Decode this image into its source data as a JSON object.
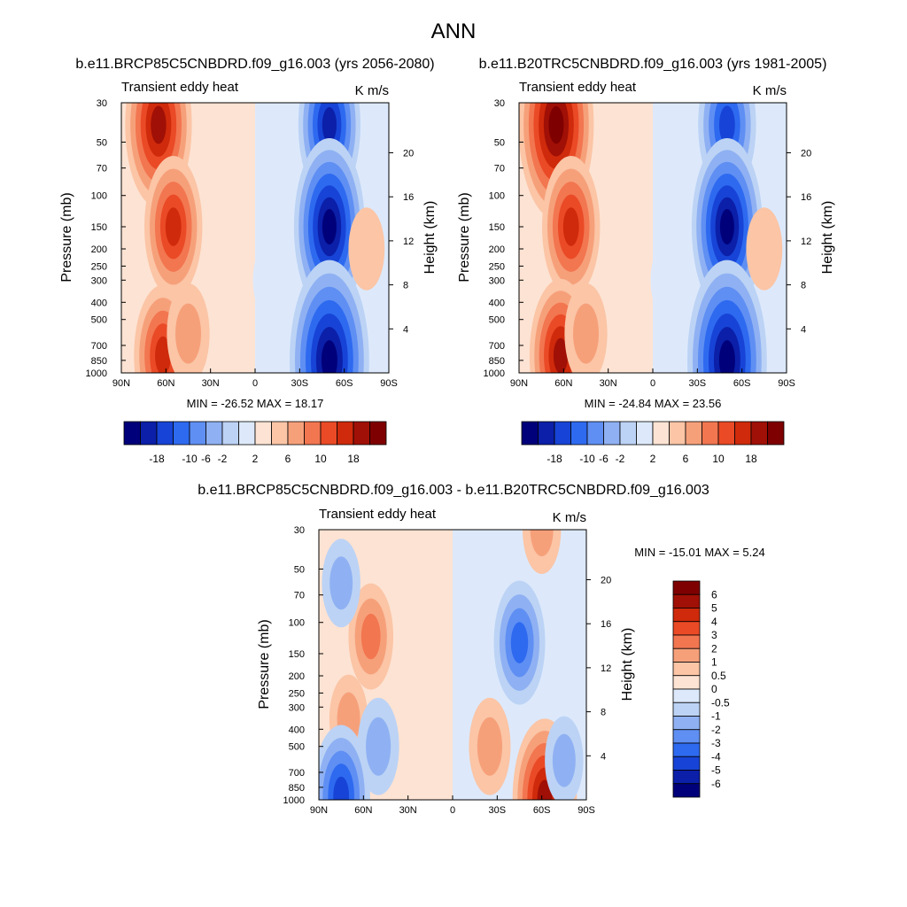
{
  "title": "ANN",
  "chart_data": [
    {
      "type": "heatmap",
      "run_title": "b.e11.BRCP85C5CNBDRD.f09_g16.003 (yrs 2056-2080)",
      "left_title": "Transient eddy heat",
      "right_title": "K m/s",
      "ylabel": "Pressure (mb)",
      "y2label": "Height (km)",
      "x_ticks": [
        "90N",
        "60N",
        "30N",
        "0",
        "30S",
        "60S",
        "90S"
      ],
      "y_ticks": [
        "30",
        "50",
        "70",
        "100",
        "150",
        "200",
        "250",
        "300",
        "400",
        "500",
        "700",
        "850",
        "1000"
      ],
      "y2_ticks": [
        "20",
        "16",
        "12",
        "8",
        "4"
      ],
      "stats": "MIN = -26.52  MAX = 18.17",
      "colorbar": {
        "orientation": "horizontal",
        "labels": [
          "-18",
          "-10",
          "-6",
          "-2",
          "2",
          "6",
          "10",
          "18"
        ]
      },
      "features": [
        {
          "lat": 65,
          "p": 40,
          "value": 16
        },
        {
          "lat": 55,
          "p": 150,
          "value": 12
        },
        {
          "lat": 62,
          "p": 800,
          "value": 12
        },
        {
          "lat": 45,
          "p": 600,
          "value": 5
        },
        {
          "lat": 15,
          "p": 100,
          "value": 1
        },
        {
          "lat": -10,
          "p": 300,
          "value": -1
        },
        {
          "lat": -50,
          "p": 40,
          "value": -14
        },
        {
          "lat": -50,
          "p": 150,
          "value": -18
        },
        {
          "lat": -50,
          "p": 850,
          "value": -22
        },
        {
          "lat": -75,
          "p": 200,
          "value": 2
        }
      ]
    },
    {
      "type": "heatmap",
      "run_title": "b.e11.B20TRC5CNBDRD.f09_g16.003 (yrs 1981-2005)",
      "left_title": "Transient eddy heat",
      "right_title": "K m/s",
      "ylabel": "Pressure (mb)",
      "y2label": "Height (km)",
      "x_ticks": [
        "90N",
        "60N",
        "30N",
        "0",
        "30S",
        "60S",
        "90S"
      ],
      "y_ticks": [
        "30",
        "50",
        "70",
        "100",
        "150",
        "200",
        "250",
        "300",
        "400",
        "500",
        "700",
        "850",
        "1000"
      ],
      "y2_ticks": [
        "20",
        "16",
        "12",
        "8",
        "4"
      ],
      "stats": "MIN = -24.84  MAX = 23.56",
      "colorbar": {
        "orientation": "horizontal",
        "labels": [
          "-18",
          "-10",
          "-6",
          "-2",
          "2",
          "6",
          "10",
          "18"
        ]
      },
      "features": [
        {
          "lat": 65,
          "p": 40,
          "value": 20
        },
        {
          "lat": 55,
          "p": 150,
          "value": 12
        },
        {
          "lat": 62,
          "p": 800,
          "value": 14
        },
        {
          "lat": 45,
          "p": 600,
          "value": 5
        },
        {
          "lat": 15,
          "p": 100,
          "value": 1
        },
        {
          "lat": -10,
          "p": 300,
          "value": -1
        },
        {
          "lat": -50,
          "p": 40,
          "value": -12
        },
        {
          "lat": -50,
          "p": 150,
          "value": -18
        },
        {
          "lat": -50,
          "p": 850,
          "value": -22
        },
        {
          "lat": -75,
          "p": 200,
          "value": 2
        }
      ]
    },
    {
      "type": "heatmap",
      "run_title": "b.e11.BRCP85C5CNBDRD.f09_g16.003 - b.e11.B20TRC5CNBDRD.f09_g16.003",
      "left_title": "Transient eddy heat",
      "right_title": "K m/s",
      "ylabel": "Pressure (mb)",
      "y2label": "Height (km)",
      "x_ticks": [
        "90N",
        "60N",
        "30N",
        "0",
        "30S",
        "60S",
        "90S"
      ],
      "y_ticks": [
        "30",
        "50",
        "70",
        "100",
        "150",
        "200",
        "250",
        "300",
        "400",
        "500",
        "700",
        "850",
        "1000"
      ],
      "y2_ticks": [
        "20",
        "16",
        "12",
        "8",
        "4"
      ],
      "stats": "MIN = -15.01  MAX =   5.24",
      "colorbar": {
        "orientation": "vertical",
        "labels": [
          "6",
          "5",
          "4",
          "3",
          "2",
          "1",
          "0.5",
          "0",
          "-0.5",
          "-1",
          "-2",
          "-3",
          "-4",
          "-5",
          "-6"
        ]
      },
      "features": [
        {
          "lat": 55,
          "p": 120,
          "value": 2
        },
        {
          "lat": 75,
          "p": 60,
          "value": -1
        },
        {
          "lat": -45,
          "p": 130,
          "value": -3
        },
        {
          "lat": -60,
          "p": 30,
          "value": 1
        },
        {
          "lat": -25,
          "p": 500,
          "value": 1.5
        },
        {
          "lat": 70,
          "p": 350,
          "value": 1
        },
        {
          "lat": 50,
          "p": 500,
          "value": -1.5
        },
        {
          "lat": 75,
          "p": 950,
          "value": -4
        },
        {
          "lat": -62,
          "p": 980,
          "value": 5
        },
        {
          "lat": -75,
          "p": 600,
          "value": -1
        }
      ]
    }
  ],
  "colors": {
    "diverging": [
      "#00007a",
      "#0b1fa8",
      "#1744d6",
      "#2e6af0",
      "#5f8ff3",
      "#8fb1f3",
      "#bcd3f5",
      "#dde9fb",
      "#fde3d3",
      "#fbc5a6",
      "#f6a07a",
      "#f27650",
      "#ea4a26",
      "#cf2a0b",
      "#a01006",
      "#7f0000"
    ]
  }
}
